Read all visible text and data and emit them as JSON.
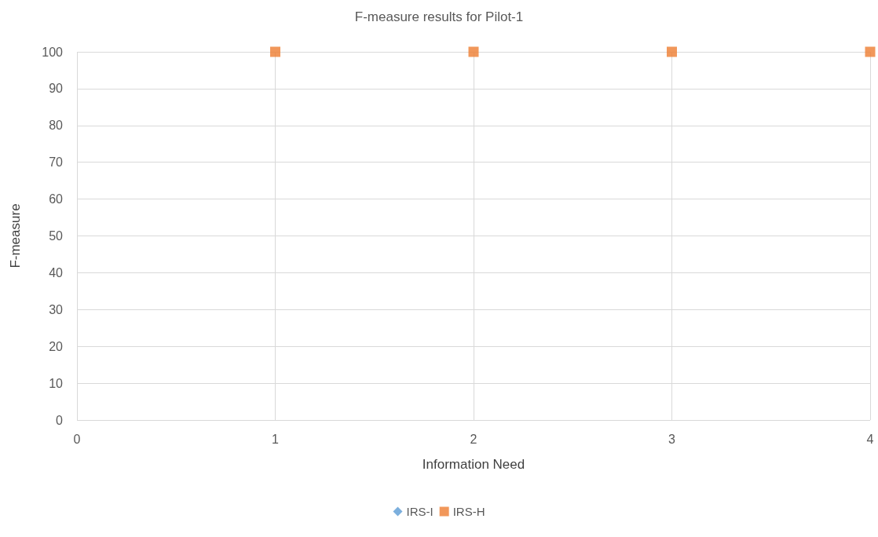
{
  "chart_data": {
    "type": "scatter",
    "title": "F-measure results for Pilot-1",
    "xlabel": "Information Need",
    "ylabel": "F-measure",
    "x": [
      1,
      2,
      3,
      4
    ],
    "series": [
      {
        "name": "IRS-I",
        "color": "#5b9bd5",
        "marker": "diamond",
        "values": [
          null,
          null,
          null,
          null
        ]
      },
      {
        "name": "IRS-H",
        "color": "#ed7d31",
        "marker": "square",
        "values": [
          100,
          100,
          100,
          100
        ]
      }
    ],
    "xlim": [
      0,
      4
    ],
    "xticks": [
      0,
      1,
      2,
      3,
      4
    ],
    "ylim": [
      0,
      100
    ],
    "yticks": [
      0,
      10,
      20,
      30,
      40,
      50,
      60,
      70,
      80,
      90,
      100
    ],
    "grid": true,
    "legend": "bottom"
  }
}
